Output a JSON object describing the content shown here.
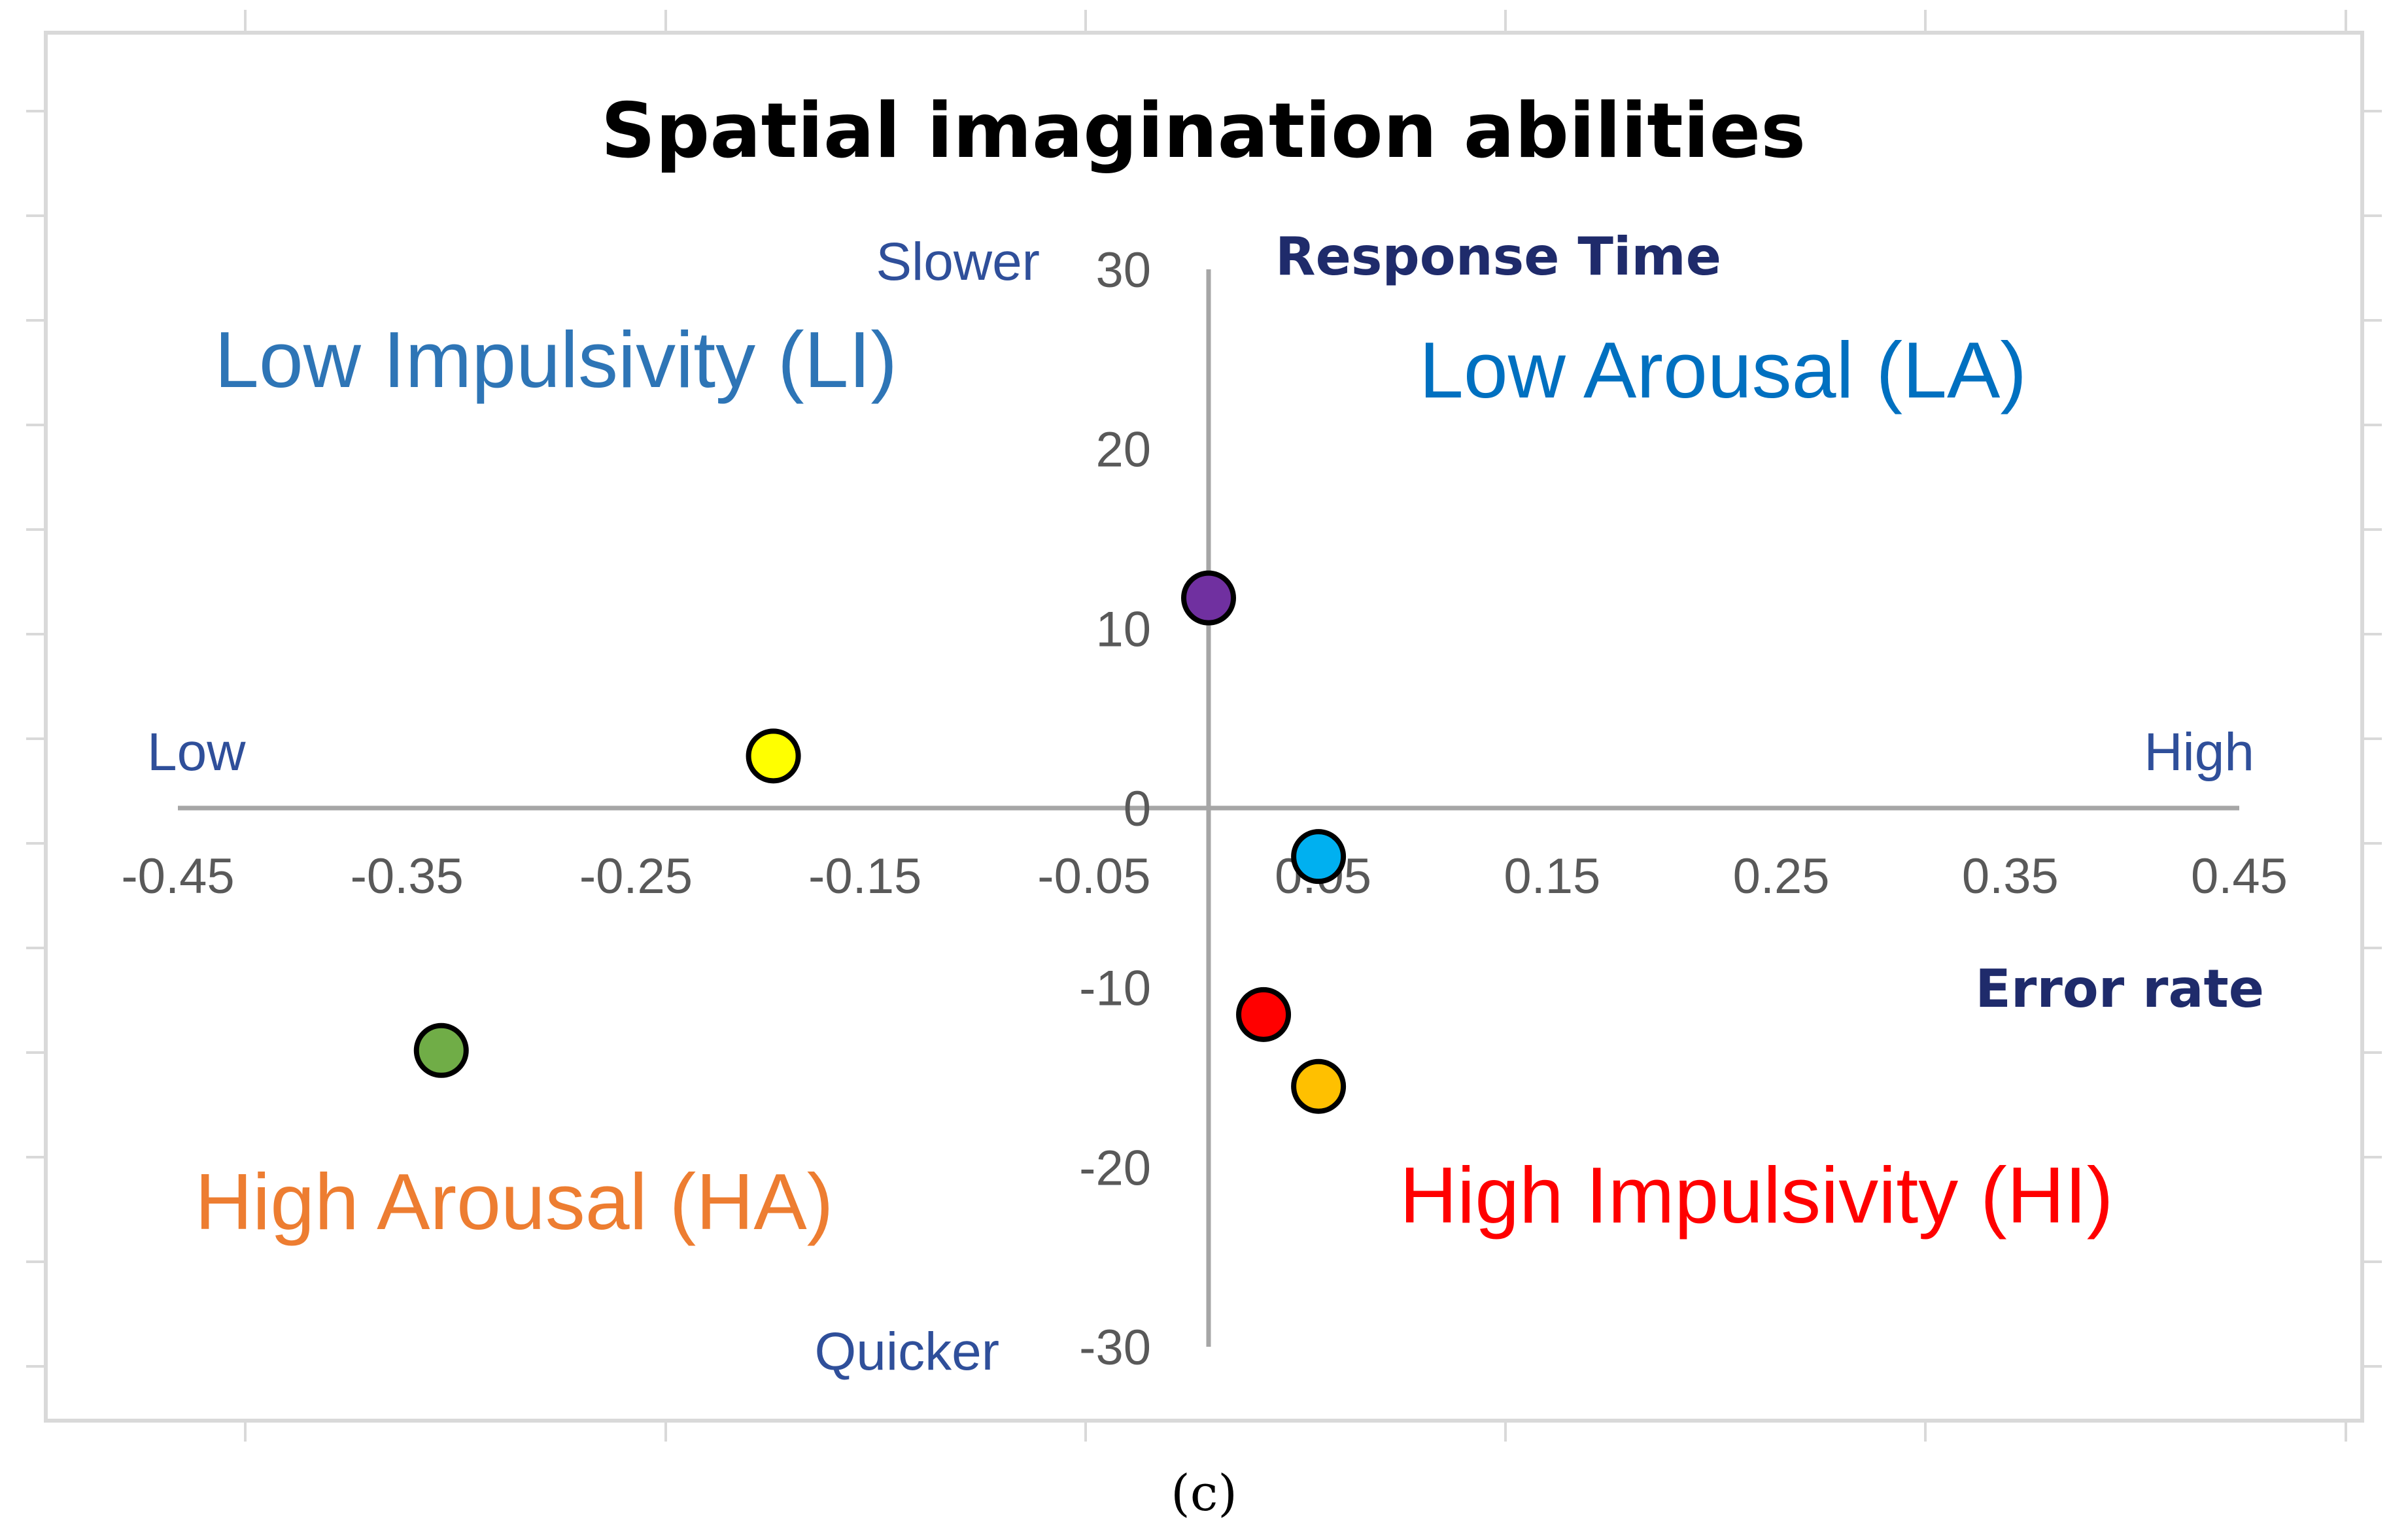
{
  "chart_data": {
    "type": "scatter",
    "title": "Spatial imagination abilities",
    "xlabel": "Error rate",
    "ylabel": "Response Time",
    "xlim": [
      -0.45,
      0.45
    ],
    "ylim": [
      -30,
      30
    ],
    "x_ticks": [
      "-0.45",
      "-0.35",
      "-0.25",
      "-0.15",
      "-0.05",
      "0.05",
      "0.15",
      "0.25",
      "0.35",
      "0.45"
    ],
    "y_ticks": [
      "30",
      "20",
      "10",
      "0",
      "-10",
      "-20",
      "-30"
    ],
    "grid": false,
    "direction_labels": {
      "x_low": "Low",
      "x_high": "High",
      "y_high": "Slower",
      "y_low": "Quicker"
    },
    "quadrant_labels": {
      "top_left": {
        "text": "Low Impulsivity (LI)",
        "color": "#2e75b6"
      },
      "top_right": {
        "text": "Low Arousal (LA)",
        "color": "#0070c0"
      },
      "bottom_left": {
        "text": "High Arousal (HA)",
        "color": "#ed7d31"
      },
      "bottom_right": {
        "text": "High Impulsivity (HI)",
        "color": "#ff0000"
      }
    },
    "points": [
      {
        "x": 0.0,
        "y": 11.7,
        "color": "#7030a0"
      },
      {
        "x": -0.19,
        "y": 2.9,
        "color": "#ffff00"
      },
      {
        "x": 0.048,
        "y": -2.7,
        "color": "#00b0f0"
      },
      {
        "x": 0.024,
        "y": -11.5,
        "color": "#ff0000"
      },
      {
        "x": 0.048,
        "y": -15.5,
        "color": "#ffc000"
      },
      {
        "x": -0.335,
        "y": -13.5,
        "color": "#70ad47"
      }
    ]
  },
  "caption": "(c)"
}
